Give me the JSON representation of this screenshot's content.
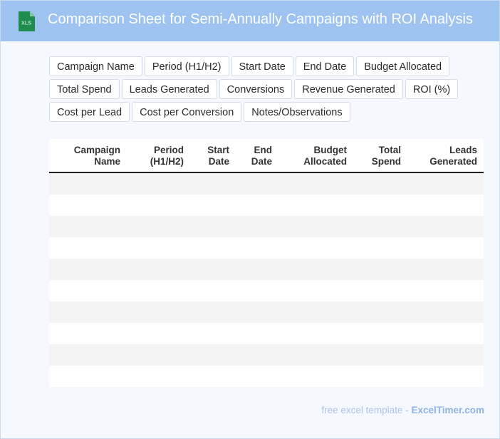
{
  "header": {
    "title": "Comparison Sheet for Semi-Annually Campaigns with ROI Analysis",
    "icon_label": "XLS",
    "icon": "excel-file-icon",
    "background_color": "#9ec3f0"
  },
  "fields": [
    "Campaign Name",
    "Period (H1/H2)",
    "Start Date",
    "End Date",
    "Budget Allocated",
    "Total Spend",
    "Leads Generated",
    "Conversions",
    "Revenue Generated",
    "ROI (%)",
    "Cost per Lead",
    "Cost per Conversion",
    "Notes/Observations"
  ],
  "table": {
    "columns": [
      {
        "line1": "Campaign",
        "line2": "Name"
      },
      {
        "line1": "Period",
        "line2": "(H1/H2)"
      },
      {
        "line1": "Start",
        "line2": "Date"
      },
      {
        "line1": "End",
        "line2": "Date"
      },
      {
        "line1": "Budget",
        "line2": "Allocated"
      },
      {
        "line1": "Total",
        "line2": "Spend"
      },
      {
        "line1": "Leads",
        "line2": "Generated"
      }
    ],
    "row_count": 10,
    "stripe_color": "#f4f4f4"
  },
  "footer": {
    "prefix": "free excel template -",
    "brand": "ExcelTimer.com"
  }
}
